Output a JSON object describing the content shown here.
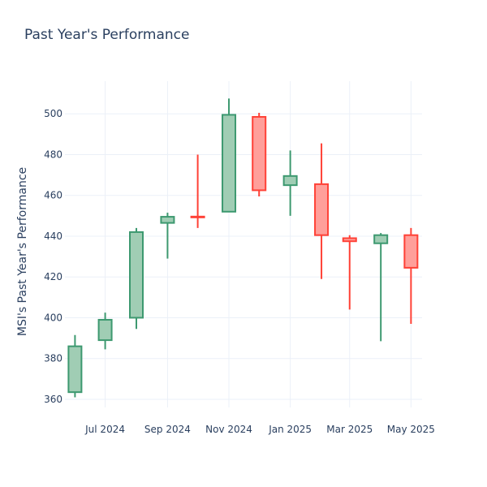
{
  "chart_data": {
    "type": "candlestick",
    "title": "Past Year's Performance",
    "ylabel": "MSI's Past Year's Performance",
    "xlabel": "",
    "ylim": [
      356,
      516
    ],
    "y_ticks": [
      360,
      380,
      400,
      420,
      440,
      460,
      480,
      500
    ],
    "x_ticks": [
      {
        "date": "2024-07-01",
        "label": "Jul 2024"
      },
      {
        "date": "2024-09-01",
        "label": "Sep 2024"
      },
      {
        "date": "2024-11-01",
        "label": "Nov 2024"
      },
      {
        "date": "2025-01-01",
        "label": "Jan 2025"
      },
      {
        "date": "2025-03-01",
        "label": "Mar 2025"
      },
      {
        "date": "2025-05-01",
        "label": "May 2025"
      }
    ],
    "increasing_color": "#3d9970",
    "increasing_fill": "#a0cdb4",
    "decreasing_color": "#ff4136",
    "decreasing_fill": "#ff9f9a",
    "grid": true,
    "candles": [
      {
        "date": "2024-06-01",
        "open": 363.5,
        "high": 391.5,
        "low": 361.0,
        "close": 386.0
      },
      {
        "date": "2024-07-01",
        "open": 389.0,
        "high": 402.5,
        "low": 384.5,
        "close": 399.0
      },
      {
        "date": "2024-08-01",
        "open": 400.0,
        "high": 444.0,
        "low": 394.5,
        "close": 442.0
      },
      {
        "date": "2024-09-01",
        "open": 446.5,
        "high": 451.5,
        "low": 429.0,
        "close": 449.5
      },
      {
        "date": "2024-10-01",
        "open": 449.6,
        "high": 480.0,
        "low": 444.0,
        "close": 449.4
      },
      {
        "date": "2024-11-01",
        "open": 452.0,
        "high": 507.5,
        "low": 452.0,
        "close": 499.5
      },
      {
        "date": "2024-12-01",
        "open": 498.5,
        "high": 500.5,
        "low": 459.5,
        "close": 462.5
      },
      {
        "date": "2025-01-01",
        "open": 465.0,
        "high": 482.0,
        "low": 450.0,
        "close": 469.5
      },
      {
        "date": "2025-02-01",
        "open": 465.5,
        "high": 485.5,
        "low": 419.0,
        "close": 440.5
      },
      {
        "date": "2025-03-01",
        "open": 439.0,
        "high": 440.5,
        "low": 404.0,
        "close": 437.5
      },
      {
        "date": "2025-04-01",
        "open": 436.5,
        "high": 441.5,
        "low": 388.5,
        "close": 440.5
      },
      {
        "date": "2025-05-01",
        "open": 440.5,
        "high": 444.0,
        "low": 397.0,
        "close": 424.5
      }
    ]
  }
}
